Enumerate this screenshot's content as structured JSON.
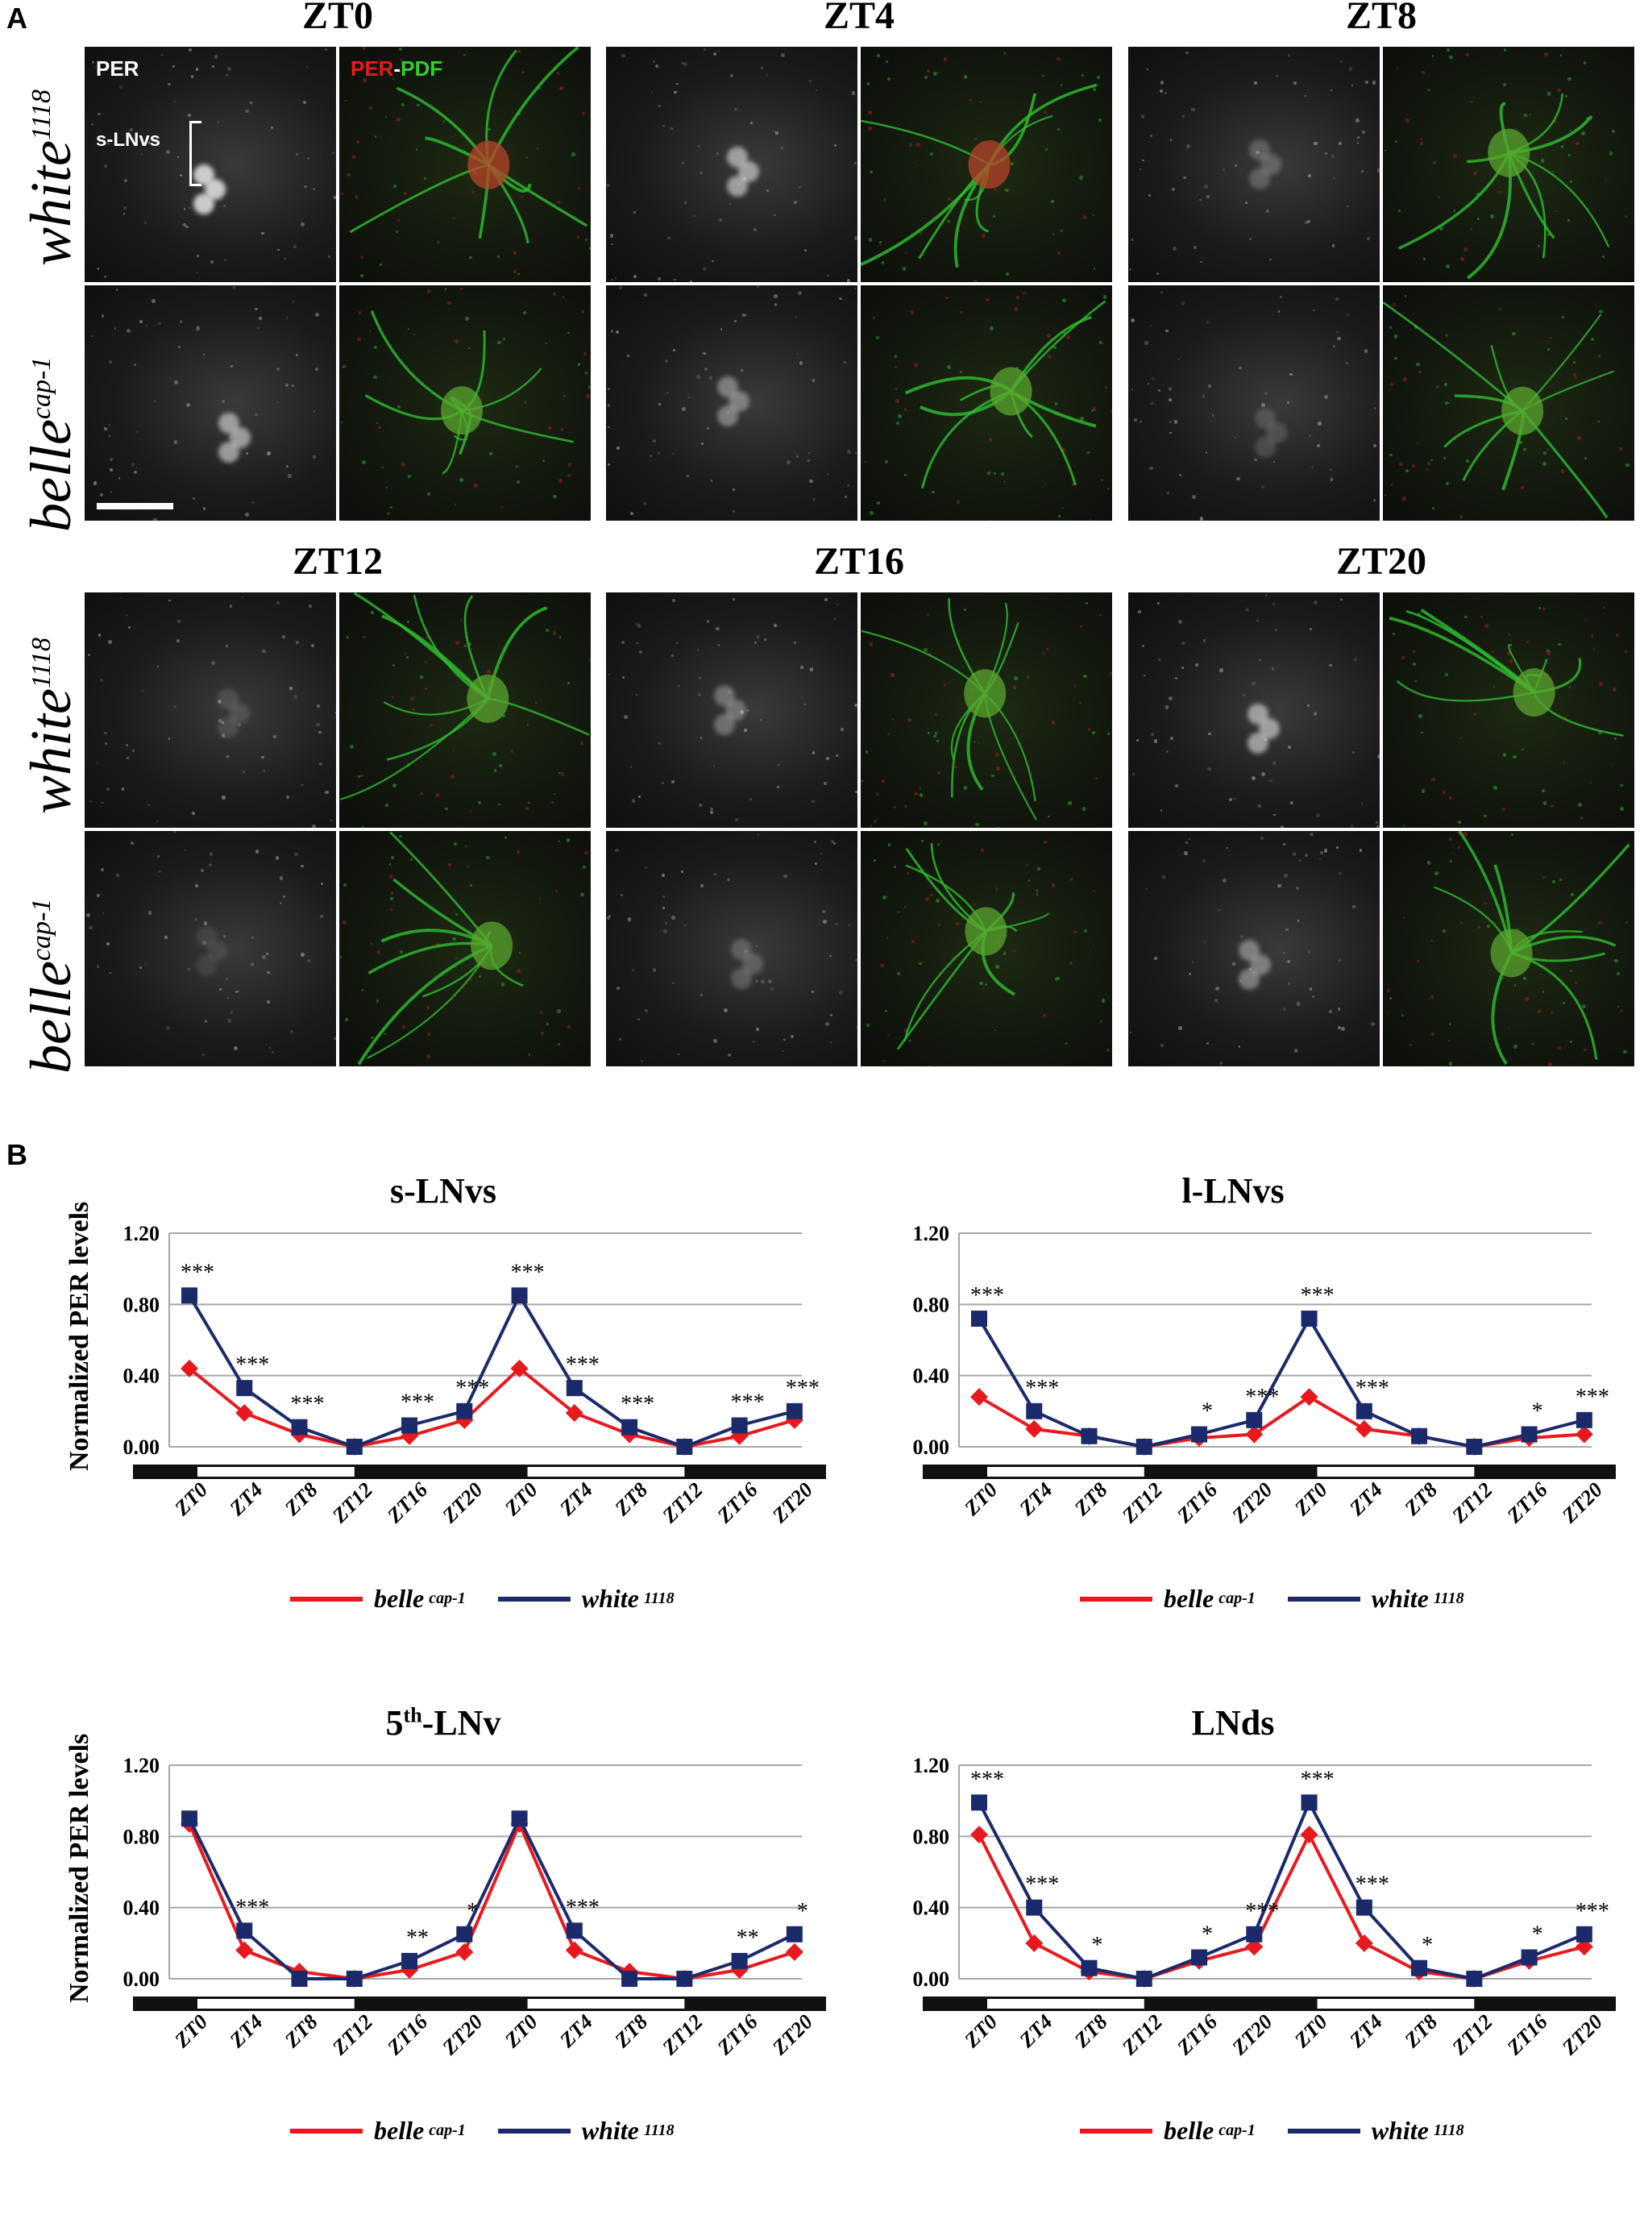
{
  "panel_a": {
    "letter": "A",
    "gray_label": "PER",
    "cell_label": "s-LNvs",
    "merge_label_per": "PER",
    "merge_label_sep": "-",
    "merge_label_pdf": "PDF",
    "genotypes": [
      {
        "name": "white",
        "sup": "1118"
      },
      {
        "name": "belle",
        "sup": "cap-1"
      }
    ],
    "timepoints": [
      "ZT0",
      "ZT4",
      "ZT8",
      "ZT12",
      "ZT16",
      "ZT20"
    ]
  },
  "panel_b": {
    "letter": "B",
    "ylabel": "Normalized PER levels",
    "legend": [
      {
        "name": "belle",
        "sup": "cap-1",
        "color": "#e8191e"
      },
      {
        "name": "white",
        "sup": "1118",
        "color": "#1b2a6b"
      }
    ],
    "colors": {
      "belle": "#e8191e",
      "white": "#1b2a6b",
      "grid": "#a6a6a6"
    }
  },
  "chart_data": [
    {
      "type": "line",
      "title": "s-LNvs",
      "ylabel": "Normalized PER levels",
      "ylim": [
        0,
        1.2
      ],
      "yticks": [
        "0.00",
        "0.40",
        "0.80",
        "1.20"
      ],
      "categories": [
        "ZT0",
        "ZT4",
        "ZT8",
        "ZT12",
        "ZT16",
        "ZT20",
        "ZT0",
        "ZT4",
        "ZT8",
        "ZT12",
        "ZT16",
        "ZT20"
      ],
      "series": [
        {
          "name": "belle cap-1",
          "values": [
            0.44,
            0.19,
            0.07,
            0.0,
            0.06,
            0.15,
            0.44,
            0.19,
            0.07,
            0.0,
            0.06,
            0.15
          ]
        },
        {
          "name": "white 1118",
          "values": [
            0.85,
            0.33,
            0.11,
            0.0,
            0.12,
            0.2,
            0.85,
            0.33,
            0.11,
            0.0,
            0.12,
            0.2
          ]
        }
      ],
      "annotations": [
        "***",
        "***",
        "***",
        "",
        "***",
        "***",
        "***",
        "***",
        "***",
        "",
        "***",
        "***"
      ]
    },
    {
      "type": "line",
      "title": "l-LNvs",
      "ylabel": "",
      "ylim": [
        0,
        1.2
      ],
      "yticks": [
        "0.00",
        "0.40",
        "0.80",
        "1.20"
      ],
      "categories": [
        "ZT0",
        "ZT4",
        "ZT8",
        "ZT12",
        "ZT16",
        "ZT20",
        "ZT0",
        "ZT4",
        "ZT8",
        "ZT12",
        "ZT16",
        "ZT20"
      ],
      "series": [
        {
          "name": "belle cap-1",
          "values": [
            0.28,
            0.1,
            0.06,
            0.0,
            0.05,
            0.07,
            0.28,
            0.1,
            0.06,
            0.0,
            0.05,
            0.07
          ]
        },
        {
          "name": "white 1118",
          "values": [
            0.72,
            0.2,
            0.06,
            0.0,
            0.07,
            0.15,
            0.72,
            0.2,
            0.06,
            0.0,
            0.07,
            0.15
          ]
        }
      ],
      "annotations": [
        "***",
        "***",
        "",
        "",
        "*",
        "***",
        "***",
        "***",
        "",
        "",
        "*",
        "***"
      ]
    },
    {
      "type": "line",
      "title": "5th-LNv",
      "title_main": "5",
      "title_sup": "th",
      "title_rest": "-LNv",
      "ylabel": "Normalized PER levels",
      "ylim": [
        0,
        1.2
      ],
      "yticks": [
        "0.00",
        "0.40",
        "0.80",
        "1.20"
      ],
      "categories": [
        "ZT0",
        "ZT4",
        "ZT8",
        "ZT12",
        "ZT16",
        "ZT20",
        "ZT0",
        "ZT4",
        "ZT8",
        "ZT12",
        "ZT16",
        "ZT20"
      ],
      "series": [
        {
          "name": "belle cap-1",
          "values": [
            0.87,
            0.16,
            0.04,
            0.0,
            0.05,
            0.15,
            0.87,
            0.16,
            0.04,
            0.0,
            0.05,
            0.15
          ]
        },
        {
          "name": "white 1118",
          "values": [
            0.9,
            0.27,
            0.0,
            0.0,
            0.1,
            0.25,
            0.9,
            0.27,
            0.0,
            0.0,
            0.1,
            0.25
          ]
        }
      ],
      "annotations": [
        "",
        "***",
        "",
        "",
        "**",
        "*",
        "",
        "***",
        "",
        "",
        "**",
        "*"
      ]
    },
    {
      "type": "line",
      "title": "LNds",
      "ylabel": "",
      "ylim": [
        0,
        1.2
      ],
      "yticks": [
        "0.00",
        "0.40",
        "0.80",
        "1.20"
      ],
      "categories": [
        "ZT0",
        "ZT4",
        "ZT8",
        "ZT12",
        "ZT16",
        "ZT20",
        "ZT0",
        "ZT4",
        "ZT8",
        "ZT12",
        "ZT16",
        "ZT20"
      ],
      "series": [
        {
          "name": "belle cap-1",
          "values": [
            0.81,
            0.2,
            0.04,
            0.0,
            0.1,
            0.18,
            0.81,
            0.2,
            0.04,
            0.0,
            0.1,
            0.18
          ]
        },
        {
          "name": "white 1118",
          "values": [
            0.99,
            0.4,
            0.06,
            0.0,
            0.12,
            0.25,
            0.99,
            0.4,
            0.06,
            0.0,
            0.12,
            0.25
          ]
        }
      ],
      "annotations": [
        "***",
        "***",
        "*",
        "",
        "*",
        "***",
        "***",
        "***",
        "*",
        "",
        "*",
        "***"
      ]
    }
  ]
}
